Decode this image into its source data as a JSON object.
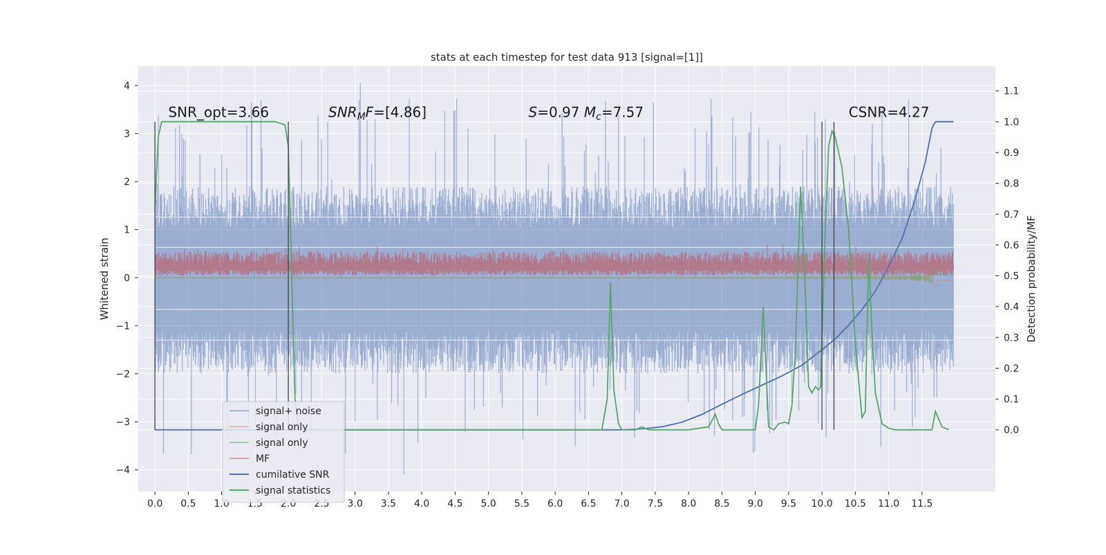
{
  "chart_data": {
    "type": "line",
    "title": "stats at each timestep for test data 913 [signal=[1]]",
    "ylabel": "Whitened strain",
    "ylabel_right": "Detection probability/MF",
    "xlim": [
      -0.25,
      12.6
    ],
    "ylim": [
      -4.45,
      4.4
    ],
    "ylim_right": [
      -0.2,
      1.18
    ],
    "x_ticks": [
      0.0,
      0.5,
      1.0,
      1.5,
      2.0,
      2.5,
      3.0,
      3.5,
      4.0,
      4.5,
      5.0,
      5.5,
      6.0,
      6.5,
      7.0,
      7.5,
      8.0,
      8.5,
      9.0,
      9.5,
      10.0,
      10.5,
      11.0,
      11.5
    ],
    "x_tick_labels": [
      "0.0",
      "0.5",
      "1.0",
      "1.5",
      "2.0",
      "2.5",
      "3.0",
      "3.5",
      "4.0",
      "4.5",
      "5.0",
      "5.5",
      "6.0",
      "6.5",
      "7.0",
      "7.5",
      "8.0",
      "8.5",
      "9.0",
      "9.5",
      "10.0",
      "10.5",
      "11.0",
      "11.5"
    ],
    "y_ticks": [
      -4,
      -3,
      -2,
      -1,
      0,
      1,
      2,
      3,
      4
    ],
    "y_tick_labels": [
      "−4",
      "−3",
      "−2",
      "−1",
      "0",
      "1",
      "2",
      "3",
      "4"
    ],
    "y_right_ticks": [
      0.0,
      0.1,
      0.2,
      0.3,
      0.4,
      0.5,
      0.6,
      0.7,
      0.8,
      0.9,
      1.0,
      1.1
    ],
    "y_right_tick_labels": [
      "0.0",
      "0.1",
      "0.2",
      "0.3",
      "0.4",
      "0.5",
      "0.6",
      "0.7",
      "0.8",
      "0.9",
      "1.0",
      "1.1"
    ],
    "grid": true,
    "legend_position": "lower-left",
    "annotations": [
      {
        "text": "SNR_opt=3.66",
        "x": 0.2,
        "y_right": 1.015
      },
      {
        "text": "SNR_MF=[4.86]",
        "x": 2.6,
        "y_right": 1.015
      },
      {
        "text": "S=0.97   M_c=7.57",
        "x": 5.6,
        "y_right": 1.015
      },
      {
        "text": "CSNR=4.27",
        "x": 10.4,
        "y_right": 1.015
      }
    ],
    "vertical_lines": [
      0.0,
      2.0,
      10.0,
      10.18
    ],
    "series": [
      {
        "name": "signal+ noise",
        "color": "#4c72b0",
        "axis": "left",
        "style": "noise-band",
        "x_range": [
          0.0,
          11.97
        ],
        "typical_range": [
          -2.0,
          1.9
        ],
        "extreme_range": [
          -4.1,
          4.05
        ]
      },
      {
        "name": "signal only",
        "color": "#dd8452",
        "axis": "left",
        "style": "chirp",
        "x_range": [
          0.0,
          11.97
        ]
      },
      {
        "name": "signal only",
        "color": "#55a868",
        "axis": "left",
        "style": "chirp",
        "x_range": [
          0.0,
          11.97
        ]
      },
      {
        "name": "MF",
        "color": "#c44e52",
        "axis": "right",
        "style": "noise-band",
        "x_range": [
          0.0,
          11.97
        ],
        "typical_range": [
          0.5,
          0.58
        ]
      },
      {
        "name": "cumilative SNR",
        "color": "#4c72b0",
        "axis": "right",
        "x": [
          0.0,
          2.0,
          4.0,
          6.0,
          7.0,
          7.3,
          7.6,
          7.9,
          8.2,
          8.5,
          8.8,
          9.1,
          9.4,
          9.7,
          10.0,
          10.2,
          10.4,
          10.6,
          10.8,
          11.0,
          11.2,
          11.4,
          11.55,
          11.65,
          11.7,
          11.97
        ],
        "y": [
          0.0,
          0.0,
          0.0,
          0.0,
          0.0,
          0.003,
          0.01,
          0.025,
          0.05,
          0.083,
          0.115,
          0.145,
          0.175,
          0.21,
          0.26,
          0.295,
          0.34,
          0.39,
          0.45,
          0.53,
          0.62,
          0.75,
          0.87,
          0.98,
          1.0,
          1.0
        ]
      },
      {
        "name": "signal statistics",
        "color": "#55a868",
        "axis": "right",
        "x": [
          0.0,
          0.02,
          0.05,
          0.1,
          0.2,
          0.5,
          1.0,
          1.5,
          1.8,
          1.95,
          2.0,
          2.05,
          2.1,
          2.15,
          2.3,
          2.5,
          3.0,
          4.0,
          5.0,
          6.0,
          6.5,
          6.7,
          6.78,
          6.83,
          6.88,
          6.95,
          7.0,
          7.2,
          7.3,
          7.4,
          7.5,
          8.0,
          8.3,
          8.4,
          8.45,
          8.5,
          8.6,
          9.0,
          9.05,
          9.12,
          9.2,
          9.28,
          9.35,
          9.45,
          9.5,
          9.55,
          9.6,
          9.68,
          9.75,
          9.8,
          9.85,
          9.9,
          9.95,
          9.98,
          10.0,
          10.05,
          10.1,
          10.15,
          10.2,
          10.3,
          10.4,
          10.5,
          10.6,
          10.65,
          10.7,
          10.75,
          10.8,
          10.9,
          11.0,
          11.1,
          11.5,
          11.6,
          11.65,
          11.7,
          11.8,
          11.9
        ],
        "y": [
          0.71,
          0.82,
          0.95,
          1.0,
          1.0,
          1.0,
          1.0,
          1.0,
          1.0,
          0.99,
          0.92,
          0.5,
          0.1,
          0.0,
          0.0,
          0.0,
          0.0,
          0.0,
          0.0,
          0.0,
          0.0,
          0.0,
          0.1,
          0.48,
          0.13,
          0.02,
          0.0,
          0.0,
          0.01,
          0.0,
          0.0,
          0.0,
          0.01,
          0.05,
          0.02,
          0.0,
          0.0,
          0.0,
          0.08,
          0.4,
          0.01,
          0.0,
          0.02,
          0.025,
          0.02,
          0.08,
          0.25,
          0.79,
          0.45,
          0.14,
          0.12,
          0.14,
          0.13,
          0.14,
          0.3,
          0.65,
          0.92,
          0.97,
          0.95,
          0.85,
          0.65,
          0.28,
          0.04,
          0.06,
          0.56,
          0.32,
          0.12,
          0.02,
          0.005,
          0.0,
          0.0,
          0.0,
          0.0,
          0.06,
          0.01,
          0.0
        ]
      }
    ]
  }
}
